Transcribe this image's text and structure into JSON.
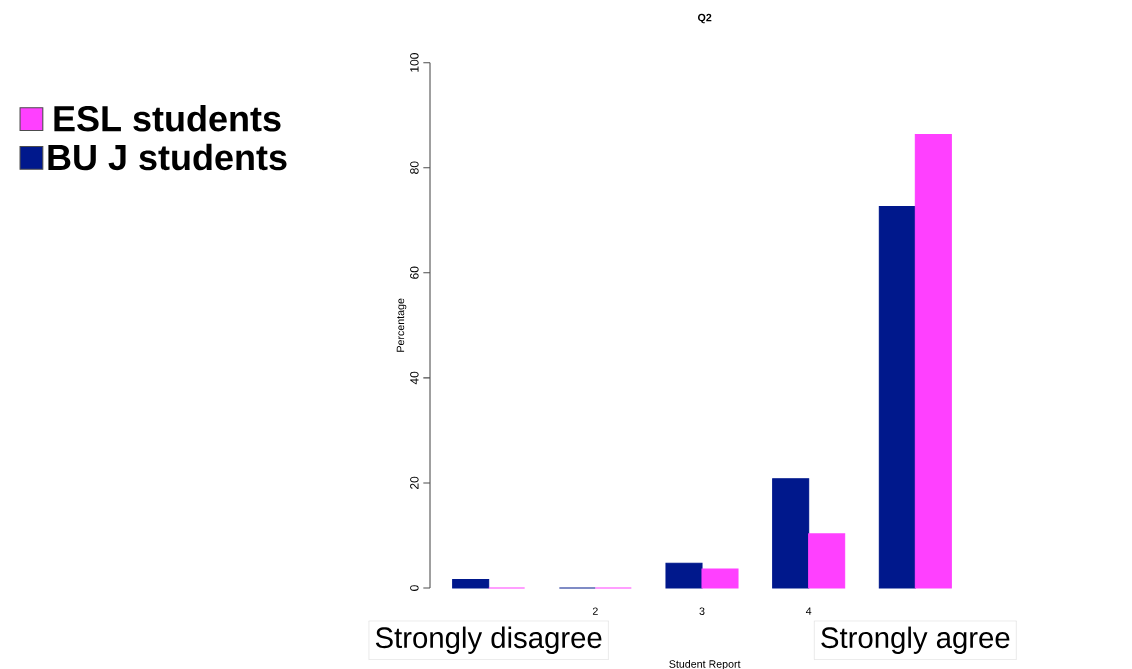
{
  "chart_data": {
    "type": "bar",
    "title": "Q2",
    "xlabel": "Student Report",
    "ylabel": "Percentage",
    "categories": [
      "Strongly disagree",
      "2",
      "3",
      "4",
      "Strongly agree"
    ],
    "series": [
      {
        "name": "BU J students",
        "color": "#00188c",
        "values": [
          1.6,
          0,
          4.7,
          20.8,
          72.6
        ]
      },
      {
        "name": "ESL students",
        "color": "#ff40ff",
        "values": [
          0,
          0,
          3.6,
          10.3,
          86.3
        ]
      }
    ],
    "ylim": [
      0,
      100
    ],
    "yticks": [
      0,
      20,
      40,
      60,
      80,
      100
    ],
    "grid": false,
    "legend": "left"
  }
}
